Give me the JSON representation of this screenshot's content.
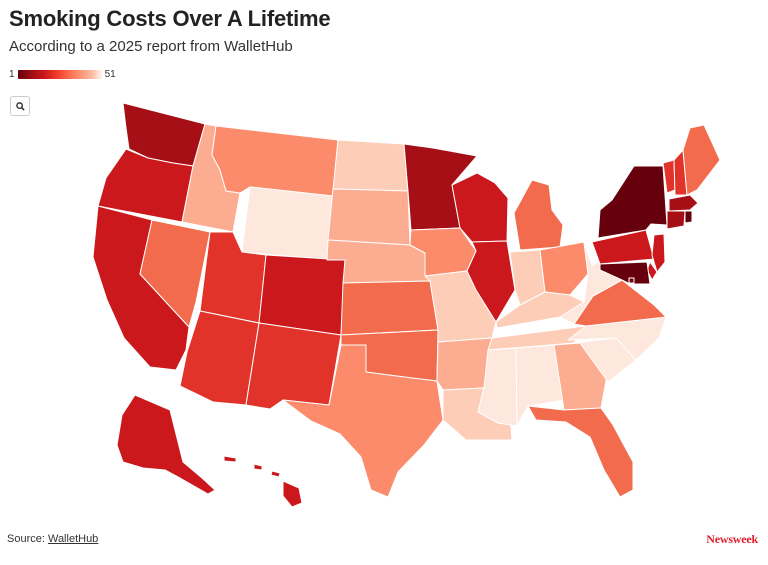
{
  "header": {
    "title": "Smoking Costs Over A Lifetime",
    "subtitle": "According to a 2025 report from WalletHub"
  },
  "legend": {
    "min_label": "1",
    "max_label": "51"
  },
  "footer": {
    "source_prefix": "Source: ",
    "source_link": "WalletHub",
    "brand": "Newsweek"
  },
  "colors": {
    "r1": "#67000d",
    "r2": "#a50f15",
    "r3": "#cb181d",
    "r4": "#e2332a",
    "r5": "#f26b4c",
    "r6": "#fb8b6a",
    "r7": "#fcad91",
    "r8": "#fdcdb8",
    "r9": "#fee7dc",
    "border": "#ffffff"
  },
  "map_data": {
    "type": "choropleth",
    "metric": "rank",
    "states": [
      {
        "id": "WA",
        "tier": "r2"
      },
      {
        "id": "OR",
        "tier": "r3"
      },
      {
        "id": "CA",
        "tier": "r3"
      },
      {
        "id": "NV",
        "tier": "r5"
      },
      {
        "id": "ID",
        "tier": "r7"
      },
      {
        "id": "MT",
        "tier": "r6"
      },
      {
        "id": "WY",
        "tier": "r9"
      },
      {
        "id": "UT",
        "tier": "r4"
      },
      {
        "id": "AZ",
        "tier": "r4"
      },
      {
        "id": "CO",
        "tier": "r3"
      },
      {
        "id": "NM",
        "tier": "r4"
      },
      {
        "id": "ND",
        "tier": "r8"
      },
      {
        "id": "SD",
        "tier": "r7"
      },
      {
        "id": "NE",
        "tier": "r7"
      },
      {
        "id": "KS",
        "tier": "r5"
      },
      {
        "id": "OK",
        "tier": "r5"
      },
      {
        "id": "TX",
        "tier": "r6"
      },
      {
        "id": "MN",
        "tier": "r2"
      },
      {
        "id": "IA",
        "tier": "r6"
      },
      {
        "id": "MO",
        "tier": "r8"
      },
      {
        "id": "AR",
        "tier": "r7"
      },
      {
        "id": "LA",
        "tier": "r8"
      },
      {
        "id": "WI",
        "tier": "r3"
      },
      {
        "id": "IL",
        "tier": "r3"
      },
      {
        "id": "MI",
        "tier": "r5"
      },
      {
        "id": "IN",
        "tier": "r8"
      },
      {
        "id": "OH",
        "tier": "r6"
      },
      {
        "id": "KY",
        "tier": "r8"
      },
      {
        "id": "TN",
        "tier": "r8"
      },
      {
        "id": "MS",
        "tier": "r9"
      },
      {
        "id": "AL",
        "tier": "r9"
      },
      {
        "id": "GA",
        "tier": "r7"
      },
      {
        "id": "FL",
        "tier": "r5"
      },
      {
        "id": "SC",
        "tier": "r9"
      },
      {
        "id": "NC",
        "tier": "r9"
      },
      {
        "id": "VA",
        "tier": "r5"
      },
      {
        "id": "WV",
        "tier": "r9"
      },
      {
        "id": "PA",
        "tier": "r3"
      },
      {
        "id": "NY",
        "tier": "r1"
      },
      {
        "id": "VT",
        "tier": "r4"
      },
      {
        "id": "NH",
        "tier": "r4"
      },
      {
        "id": "ME",
        "tier": "r5"
      },
      {
        "id": "MA",
        "tier": "r2"
      },
      {
        "id": "CT",
        "tier": "r2"
      },
      {
        "id": "RI",
        "tier": "r1"
      },
      {
        "id": "NJ",
        "tier": "r3"
      },
      {
        "id": "DE",
        "tier": "r3"
      },
      {
        "id": "MD",
        "tier": "r1"
      },
      {
        "id": "DC",
        "tier": "r1"
      },
      {
        "id": "AK",
        "tier": "r3"
      },
      {
        "id": "HI",
        "tier": "r3"
      }
    ]
  }
}
